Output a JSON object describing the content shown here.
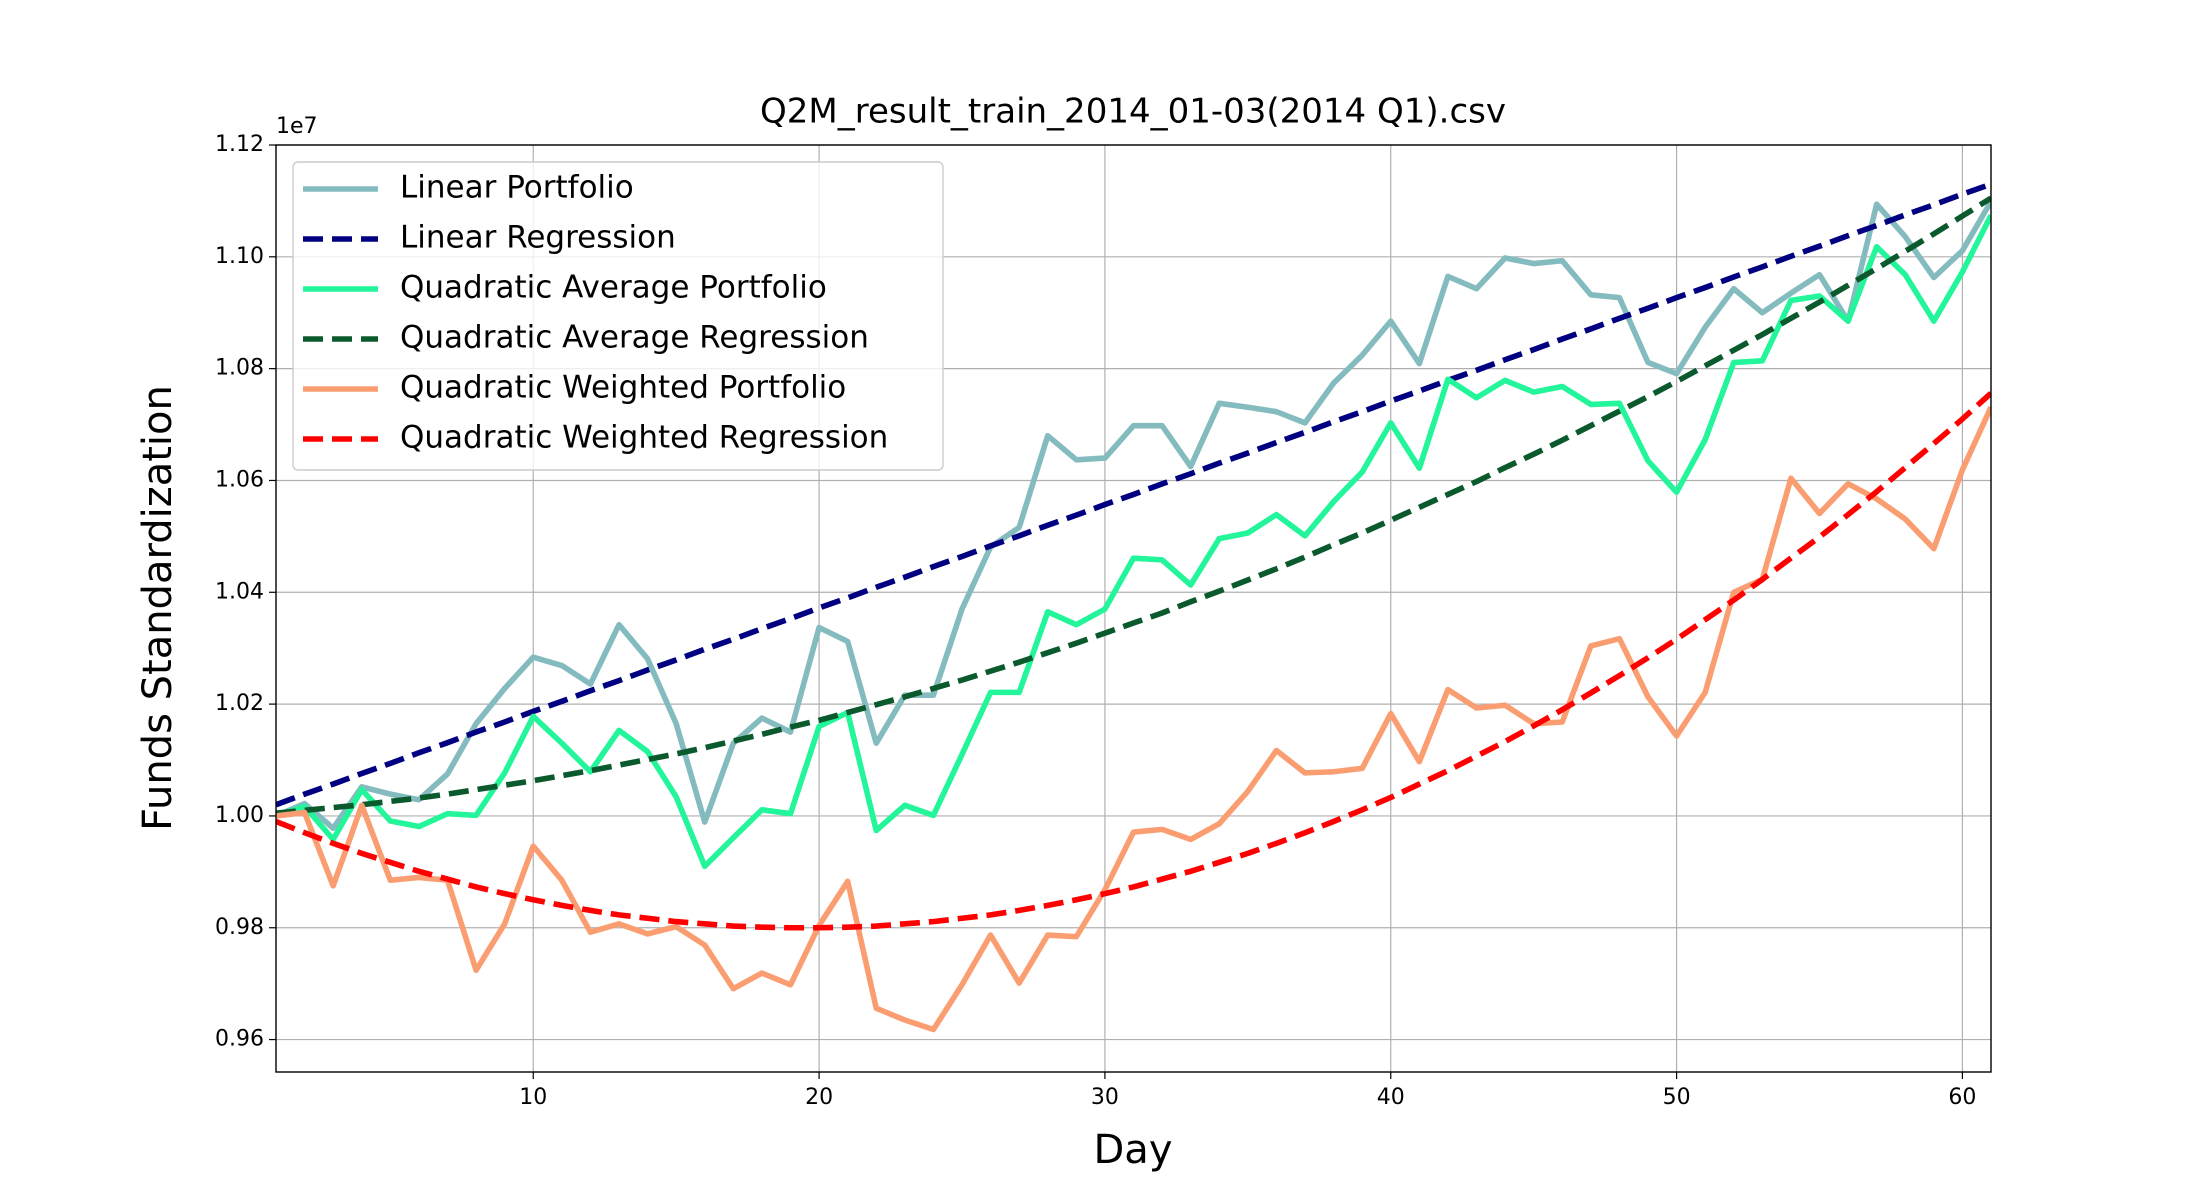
{
  "chart_data": {
    "type": "line",
    "title": "Q2M_result_train_2014_01-03(2014 Q1).csv",
    "x_label": "Day",
    "y_label": "Funds Standardization",
    "y_offset_text": "1e7",
    "grid": true,
    "legend": "upper left",
    "x": [
      1,
      2,
      3,
      4,
      5,
      6,
      7,
      8,
      9,
      10,
      11,
      12,
      13,
      14,
      15,
      16,
      17,
      18,
      19,
      20,
      21,
      22,
      23,
      24,
      25,
      26,
      27,
      28,
      29,
      30,
      31,
      32,
      33,
      34,
      35,
      36,
      37,
      38,
      39,
      40,
      41,
      42,
      43,
      44,
      45,
      46,
      47,
      48,
      49,
      50,
      51,
      52,
      53,
      54,
      55,
      56,
      57,
      58,
      59,
      60,
      61
    ],
    "xlim": [
      1,
      61
    ],
    "xticks": [
      10,
      20,
      30,
      40,
      50,
      60
    ],
    "ylim": [
      0.9542,
      1.12
    ],
    "yticks": [
      0.96,
      0.98,
      {
        "value": 1,
        "label": "1.00"
      },
      1.02,
      1.04,
      1.06,
      1.08,
      {
        "value": 1.1,
        "label": "1.10"
      },
      1.12
    ],
    "series": [
      {
        "name": "Linear Portfolio",
        "color": "#84bbbf",
        "linestyle": "solid",
        "values": [
          1.0,
          1.0022,
          0.9978,
          1.0052,
          1.0039,
          1.0029,
          1.0075,
          1.0165,
          1.0228,
          1.0284,
          1.0269,
          1.0236,
          1.0342,
          1.0281,
          1.0165,
          0.9989,
          1.013,
          1.0175,
          1.015,
          1.0337,
          1.0312,
          1.013,
          1.0216,
          1.0216,
          1.037,
          1.0481,
          1.0516,
          1.068,
          1.0637,
          1.064,
          1.0698,
          1.0698,
          1.0625,
          1.0738,
          1.0731,
          1.0723,
          1.0703,
          1.0774,
          1.0824,
          1.0885,
          1.0809,
          1.0965,
          1.0943,
          1.0998,
          1.0988,
          1.0993,
          1.0932,
          1.0927,
          1.0811,
          1.0791,
          1.0874,
          1.0943,
          1.09,
          1.0935,
          1.0968,
          1.0885,
          1.1094,
          1.1036,
          1.0963,
          1.1011,
          1.1099
        ]
      },
      {
        "name": "Linear Regression",
        "color": "#000080",
        "linestyle": "dashed",
        "values": [
          1.002,
          1.0039,
          1.0057,
          1.0076,
          1.0094,
          1.0113,
          1.0131,
          1.015,
          1.0168,
          1.0187,
          1.0205,
          1.0224,
          1.0242,
          1.0261,
          1.0279,
          1.0298,
          1.0316,
          1.0335,
          1.0353,
          1.0372,
          1.039,
          1.0409,
          1.0427,
          1.0446,
          1.0464,
          1.0483,
          1.0501,
          1.052,
          1.0538,
          1.0557,
          1.0575,
          1.0594,
          1.0612,
          1.0631,
          1.0649,
          1.0668,
          1.0686,
          1.0705,
          1.0723,
          1.0742,
          1.076,
          1.0779,
          1.0797,
          1.0816,
          1.0834,
          1.0853,
          1.0871,
          1.089,
          1.0908,
          1.0927,
          1.0945,
          1.0964,
          1.0982,
          1.1001,
          1.1019,
          1.1038,
          1.1056,
          1.1075,
          1.1093,
          1.1112,
          1.113
        ]
      },
      {
        "name": "Quadratic Average Portfolio",
        "color": "#22f59a",
        "linestyle": "solid",
        "values": [
          1.0,
          1.0017,
          0.9958,
          1.0047,
          0.9991,
          0.9981,
          1.0004,
          1.0001,
          1.0077,
          1.0178,
          1.013,
          1.0079,
          1.0153,
          1.0115,
          1.0034,
          0.991,
          0.9961,
          1.0011,
          1.0004,
          1.016,
          1.0185,
          0.9974,
          1.0019,
          1.0001,
          1.011,
          1.0221,
          1.0221,
          1.0365,
          1.0342,
          1.037,
          1.0461,
          1.0458,
          1.0413,
          1.0496,
          1.0506,
          1.0539,
          1.0501,
          1.0562,
          1.0615,
          1.0703,
          1.0622,
          1.0781,
          1.0748,
          1.0779,
          1.0758,
          1.0768,
          1.0736,
          1.0738,
          1.0635,
          1.0579,
          1.0673,
          1.0811,
          1.0814,
          1.0922,
          1.093,
          1.0885,
          1.1018,
          1.0968,
          1.0885,
          1.0973,
          1.1074
        ]
      },
      {
        "name": "Quadratic Average Regression",
        "color": "#0b5a2e",
        "linestyle": "dashed",
        "values": [
          1.0005,
          1.001,
          1.0015,
          1.002,
          1.0026,
          1.0032,
          1.0039,
          1.0047,
          1.0055,
          1.0063,
          1.0072,
          1.0081,
          1.0091,
          1.0101,
          1.0111,
          1.0122,
          1.0134,
          1.0146,
          1.0159,
          1.0171,
          1.0185,
          1.0199,
          1.0213,
          1.0228,
          1.0243,
          1.0259,
          1.0275,
          1.0292,
          1.0309,
          1.0327,
          1.0345,
          1.0363,
          1.0383,
          1.0402,
          1.0422,
          1.0442,
          1.0463,
          1.0485,
          1.0506,
          1.0529,
          1.0552,
          1.0575,
          1.0598,
          1.0623,
          1.0647,
          1.0672,
          1.0698,
          1.0724,
          1.075,
          1.0777,
          1.0805,
          1.0833,
          1.0861,
          1.089,
          1.0919,
          1.0949,
          1.0979,
          1.101,
          1.1041,
          1.1073,
          1.1105
        ]
      },
      {
        "name": "Quadratic Weighted Portfolio",
        "color": "#fa9e72",
        "linestyle": "solid",
        "values": [
          1.0,
          1.0006,
          0.9875,
          1.0019,
          0.9885,
          0.989,
          0.9885,
          0.9724,
          0.9807,
          0.9946,
          0.9885,
          0.9792,
          0.9807,
          0.9789,
          0.9802,
          0.9769,
          0.9691,
          0.9719,
          0.9698,
          0.9804,
          0.9883,
          0.9656,
          0.9635,
          0.9618,
          0.9698,
          0.9787,
          0.9701,
          0.9787,
          0.9784,
          0.9868,
          0.9971,
          0.9976,
          0.9958,
          0.9986,
          1.0044,
          1.0117,
          1.0077,
          1.0079,
          1.0085,
          1.0183,
          1.0097,
          1.0226,
          1.0193,
          1.0198,
          1.0165,
          1.0168,
          1.0304,
          1.0317,
          1.0213,
          1.0143,
          1.0221,
          1.04,
          1.0423,
          1.0604,
          1.0541,
          1.0594,
          1.0567,
          1.0531,
          1.0478,
          1.0619,
          1.0731
        ]
      },
      {
        "name": "Quadratic Weighted Regression",
        "color": "#ff0000",
        "linestyle": "dashed",
        "values": [
          0.999,
          0.997,
          0.9951,
          0.9933,
          0.9917,
          0.9901,
          0.9887,
          0.9873,
          0.9861,
          0.985,
          0.984,
          0.9831,
          0.9823,
          0.9817,
          0.9811,
          0.9807,
          0.9803,
          0.9801,
          0.98,
          0.98,
          0.9801,
          0.9803,
          0.9807,
          0.9811,
          0.9817,
          0.9823,
          0.9831,
          0.984,
          0.985,
          0.9861,
          0.9873,
          0.9887,
          0.9901,
          0.9917,
          0.9933,
          0.9951,
          0.997,
          0.999,
          1.0011,
          1.0033,
          1.0057,
          1.0081,
          1.0107,
          1.0133,
          1.0161,
          1.019,
          1.022,
          1.0251,
          1.0283,
          1.0316,
          1.0351,
          1.0386,
          1.0423,
          1.0461,
          1.0499,
          1.0539,
          1.058,
          1.0623,
          1.0666,
          1.071,
          1.0756
        ]
      }
    ]
  }
}
